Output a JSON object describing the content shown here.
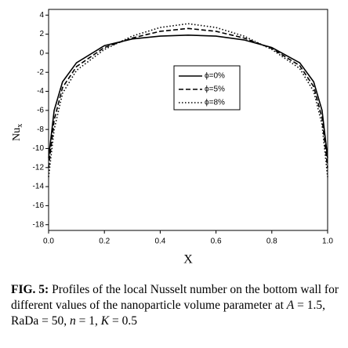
{
  "chart_data": {
    "type": "line",
    "xlabel": "X",
    "ylabel": "Nu",
    "ylabel_sub": "x",
    "x": [
      0,
      0.02,
      0.05,
      0.1,
      0.2,
      0.3,
      0.4,
      0.5,
      0.6,
      0.7,
      0.8,
      0.9,
      0.95,
      0.98,
      1
    ],
    "series": [
      {
        "name": "ϕ=0%",
        "color": "#000000",
        "dash": "solid",
        "values": [
          -11,
          -6,
          -3,
          -1,
          0.8,
          1.5,
          1.8,
          1.9,
          1.8,
          1.4,
          0.6,
          -1,
          -3,
          -6,
          -11
        ]
      },
      {
        "name": "ϕ=5%",
        "color": "#000000",
        "dash": "dash",
        "values": [
          -12,
          -7,
          -3.6,
          -1.4,
          0.6,
          1.6,
          2.3,
          2.6,
          2.3,
          1.6,
          0.5,
          -1.3,
          -3.5,
          -6.8,
          -12
        ]
      },
      {
        "name": "ϕ=8%",
        "color": "#000000",
        "dash": "dot",
        "values": [
          -13,
          -8,
          -4.2,
          -1.8,
          0.4,
          1.8,
          2.7,
          3.1,
          2.7,
          1.8,
          0.4,
          -1.6,
          -4,
          -7.5,
          -13
        ]
      }
    ],
    "xlim": [
      0,
      1
    ],
    "xticks": [
      {
        "value": 0,
        "label": "0.0"
      },
      0.2,
      0.4,
      0.6,
      0.8,
      {
        "value": 1,
        "label": "1.0"
      }
    ],
    "ylim": [
      -18.6,
      4.6
    ],
    "yticks": [
      4,
      2,
      0,
      -2,
      -4,
      -6,
      -8,
      -10,
      -12,
      -14,
      -16,
      -18
    ],
    "grid": false,
    "legend": "upper-right"
  },
  "caption": {
    "label": "FIG. 5:",
    "segments": [
      {
        "text": " Profiles of the local Nusselt number on the bottom wall for different values of the nanoparticle volume parameter at ",
        "italic": false
      },
      {
        "text": "A",
        "italic": true
      },
      {
        "text": " = 1.5, RaDa = 50, ",
        "italic": false
      },
      {
        "text": "n",
        "italic": true
      },
      {
        "text": " = 1, ",
        "italic": false
      },
      {
        "text": "K",
        "italic": true
      },
      {
        "text": " = 0.5",
        "italic": false
      }
    ]
  }
}
